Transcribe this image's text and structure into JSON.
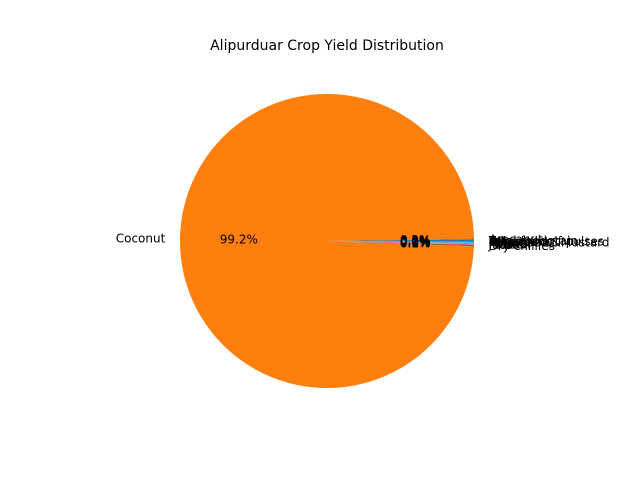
{
  "chart_data": {
    "type": "pie",
    "title": "Alipurduar Crop Yield Distribution",
    "slices": [
      {
        "label": "Arecanut",
        "value": 0.2,
        "color": "#1f77b4"
      },
      {
        "label": "Coconut",
        "value": 99.2,
        "color": "#ff7f0e"
      },
      {
        "label": "Dry chillies",
        "value": 0.1,
        "color": "#2ca02c"
      },
      {
        "label": "Jute",
        "value": 0.1,
        "color": "#d62728"
      },
      {
        "label": "Maize",
        "value": 0.0,
        "color": "#9467bd"
      },
      {
        "label": "Masoor",
        "value": 0.0,
        "color": "#8c564b"
      },
      {
        "label": "Potato",
        "value": 0.2,
        "color": "#e377c2"
      },
      {
        "label": "Rapeseed &Mustard",
        "value": 0.0,
        "color": "#7f7f7f"
      },
      {
        "label": "Rice",
        "value": 0.0,
        "color": "#bcbd22"
      },
      {
        "label": "Sugarcane",
        "value": 0.1,
        "color": "#17becf"
      },
      {
        "label": "Wheat",
        "value": 0.0,
        "color": "#1f77b4"
      },
      {
        "label": "Other Kharif pulses",
        "value": 0.0,
        "color": "#ff7f0e"
      },
      {
        "label": "Total foodgrain",
        "value": 0.1,
        "color": "#2ca02c"
      }
    ]
  }
}
